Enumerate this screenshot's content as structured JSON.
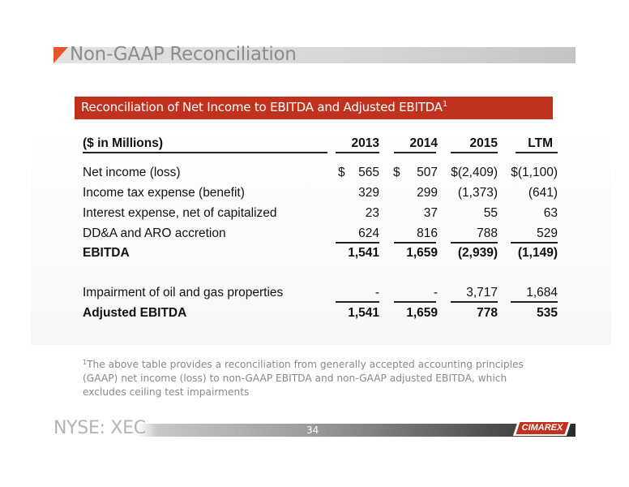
{
  "title": "Non-GAAP Reconciliation",
  "banner": {
    "text": "Reconciliation of Net Income to EBITDA and Adjusted EBITDA",
    "sup": "1"
  },
  "table": {
    "header": {
      "label": "($ in Millions)",
      "cols": [
        "2013",
        "2014",
        "2015",
        "LTM"
      ]
    },
    "rows": [
      {
        "label": "Net income (loss)",
        "dollar1": "$",
        "dollar2": "$",
        "v1": "565",
        "v2": "507",
        "v3": "$(2,409)",
        "v4": "$(1,100)"
      },
      {
        "label": "Income tax expense (benefit)",
        "v1": "329",
        "v2": "299",
        "v3": "(1,373)",
        "v4": "(641)"
      },
      {
        "label": "Interest expense, net of capitalized",
        "v1": "23",
        "v2": "37",
        "v3": "55",
        "v4": "63"
      },
      {
        "label": "DD&A and ARO accretion",
        "v1": "624",
        "v2": "816",
        "v3": "788",
        "v4": "529"
      },
      {
        "label": "EBITDA",
        "v1": "1,541",
        "v2": "1,659",
        "v3": "(2,939)",
        "v4": "(1,149)"
      },
      {
        "label": "Impairment of oil and gas properties",
        "v1": "-",
        "v2": "-",
        "v3": "3,717",
        "v4": "1,684"
      },
      {
        "label": "Adjusted EBITDA",
        "v1": "1,541",
        "v2": "1,659",
        "v3": "778",
        "v4": "535"
      }
    ]
  },
  "footnote": {
    "sup": "1",
    "text": "The above table provides a reconciliation from generally accepted accounting principles (GAAP) net income (loss) to non-GAAP EBITDA and non-GAAP adjusted EBITDA, which excludes ceiling test impairments"
  },
  "footer": {
    "ticker": "NYSE: XEC",
    "page": "34",
    "logo": "CIMAREX"
  },
  "colors": {
    "accent": "#c0321e",
    "title_gray": "#8c8c8c",
    "triangle": "#e8542c"
  }
}
